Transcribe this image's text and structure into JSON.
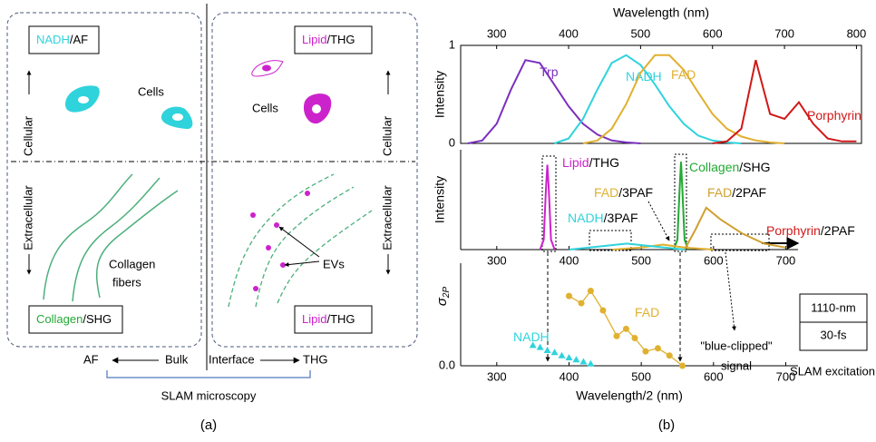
{
  "panel_a": {
    "top_left": {
      "marker": "NADH",
      "signal": "/AF"
    },
    "top_right": {
      "marker": "Lipid",
      "signal": "/THG"
    },
    "bottom_left": {
      "marker": "Collagen",
      "signal": "/SHG"
    },
    "bottom_right": {
      "marker": "Lipid",
      "signal": "/THG"
    },
    "cells_left": "Cells",
    "cells_right": "Cells",
    "collagen_fibers": [
      "Collagen",
      "fibers"
    ],
    "evs": "EVs",
    "left_axis": {
      "upper": "Cellular",
      "lower": "Extracellular"
    },
    "right_axis": {
      "upper": "Cellular",
      "lower": "Extracellular"
    },
    "bottom_axis": {
      "left_end": "AF",
      "left": "Bulk",
      "right": "Interface",
      "right_end": "THG"
    },
    "caption": "SLAM microscopy"
  },
  "panel_labels": [
    "(a)",
    "(b)"
  ],
  "chart_data": [
    {
      "type": "line",
      "xlabel": "Wavelength (nm)",
      "xaxis": "top",
      "ylabel": "Intensity",
      "xlim": [
        250,
        807
      ],
      "ylim": [
        0,
        1
      ],
      "xticks": [
        300,
        400,
        500,
        600,
        700,
        800
      ],
      "yticks": [
        0,
        1
      ],
      "x": [
        260,
        280,
        300,
        320,
        340,
        360,
        380,
        400,
        420,
        440,
        460,
        480,
        500,
        520,
        540,
        560,
        580,
        600,
        620,
        640,
        660,
        680,
        700,
        720,
        740,
        760,
        780,
        800
      ],
      "series": [
        {
          "name": "Trp",
          "color": "#7b2fbe",
          "values": [
            0,
            0.03,
            0.2,
            0.55,
            0.85,
            0.82,
            0.6,
            0.38,
            0.2,
            0.09,
            0.03,
            0.01,
            0,
            null,
            null,
            null,
            null,
            null,
            null,
            null,
            null,
            null,
            null,
            null,
            null,
            null,
            null,
            null
          ]
        },
        {
          "name": "NADH",
          "color": "#2fd3dc",
          "values": [
            null,
            null,
            null,
            null,
            null,
            null,
            0,
            0.05,
            0.25,
            0.55,
            0.82,
            0.9,
            0.8,
            0.6,
            0.38,
            0.2,
            0.08,
            0.03,
            0.01,
            0,
            null,
            null,
            null,
            null,
            null,
            null,
            null,
            null
          ]
        },
        {
          "name": "FAD",
          "color": "#e0b030",
          "values": [
            null,
            null,
            null,
            null,
            null,
            null,
            null,
            null,
            0,
            0.03,
            0.15,
            0.4,
            0.72,
            0.9,
            0.9,
            0.75,
            0.52,
            0.3,
            0.15,
            0.07,
            0.03,
            0.01,
            0,
            null,
            null,
            null,
            null,
            null
          ]
        },
        {
          "name": "Porphyrin",
          "color": "#d01818",
          "values": [
            null,
            null,
            null,
            null,
            null,
            null,
            null,
            null,
            null,
            null,
            null,
            null,
            null,
            null,
            null,
            null,
            null,
            0,
            0.02,
            0.15,
            0.85,
            0.3,
            0.25,
            0.42,
            0.2,
            0.05,
            0.02,
            0.02
          ]
        }
      ]
    },
    {
      "type": "line",
      "xaxis": "bottom",
      "ylabel": "Intensity",
      "xlim": [
        250,
        717
      ],
      "ylim": [
        0,
        1
      ],
      "xticks": [
        300,
        400,
        500,
        600,
        700
      ],
      "series": [
        {
          "name": "Lipid",
          "signal": "/THG",
          "color": "#cc22cc",
          "x": [
            360,
            365,
            368,
            370,
            372,
            375,
            380
          ],
          "values": [
            0,
            0.1,
            0.6,
            0.85,
            0.6,
            0.1,
            0
          ]
        },
        {
          "name": "Collagen",
          "signal": "/SHG",
          "color": "#22aa33",
          "x": [
            545,
            550,
            553,
            555,
            557,
            560,
            565
          ],
          "values": [
            0,
            0.1,
            0.6,
            0.88,
            0.6,
            0.1,
            0
          ]
        },
        {
          "name": "FAD",
          "signal": "/3PAF",
          "color": "#e0b030",
          "x": [
            460,
            500,
            530,
            560,
            600
          ],
          "values": [
            0,
            0.02,
            0.05,
            0.02,
            0
          ]
        },
        {
          "name": "FAD",
          "signal": "/2PAF",
          "color": "#d0a030",
          "x": [
            560,
            575,
            590,
            610,
            640,
            670,
            700
          ],
          "values": [
            0,
            0.2,
            0.42,
            0.3,
            0.16,
            0.06,
            0.02
          ]
        },
        {
          "name": "NADH",
          "signal": "/3PAF",
          "color": "#2fd3dc",
          "x": [
            400,
            440,
            480,
            520,
            560
          ],
          "values": [
            0,
            0.03,
            0.06,
            0.03,
            0
          ]
        }
      ],
      "annotations": [
        {
          "name": "Porphyrin",
          "signal": "/2PAF",
          "color": "#d01818"
        }
      ]
    },
    {
      "type": "line",
      "xaxis": "bottom",
      "xlabel": "Wavelength/2 (nm)",
      "ylabel": {
        "symbol": "σ",
        "subscript": "2P"
      },
      "xlim": [
        250,
        717
      ],
      "ylim": [
        0,
        1
      ],
      "xticks": [
        300,
        400,
        500,
        600,
        700
      ],
      "yticks": [
        {
          "value": 0,
          "label": "0.0"
        }
      ],
      "series": [
        {
          "name": "NADH",
          "color": "#2fd3dc",
          "marker": "triangle",
          "line": false,
          "x": [
            350,
            360,
            370,
            380,
            390,
            400,
            410,
            420,
            430
          ],
          "values": [
            0.2,
            0.18,
            0.15,
            0.13,
            0.1,
            0.08,
            0.06,
            0.04,
            0.02
          ]
        },
        {
          "name": "FAD",
          "color": "#e0b030",
          "marker": "circle",
          "line": true,
          "x": [
            400,
            417,
            430,
            447,
            466,
            479,
            491,
            506,
            523,
            539,
            557
          ],
          "values": [
            0.68,
            0.61,
            0.73,
            0.54,
            0.29,
            0.36,
            0.27,
            0.14,
            0.17,
            0.1,
            0
          ]
        }
      ],
      "annotations": {
        "excitation": [
          "1110-nm",
          "30-fs"
        ],
        "excitation_caption": "SLAM excitation",
        "clipped": [
          "\"blue-clipped\"",
          "signal"
        ]
      }
    }
  ]
}
